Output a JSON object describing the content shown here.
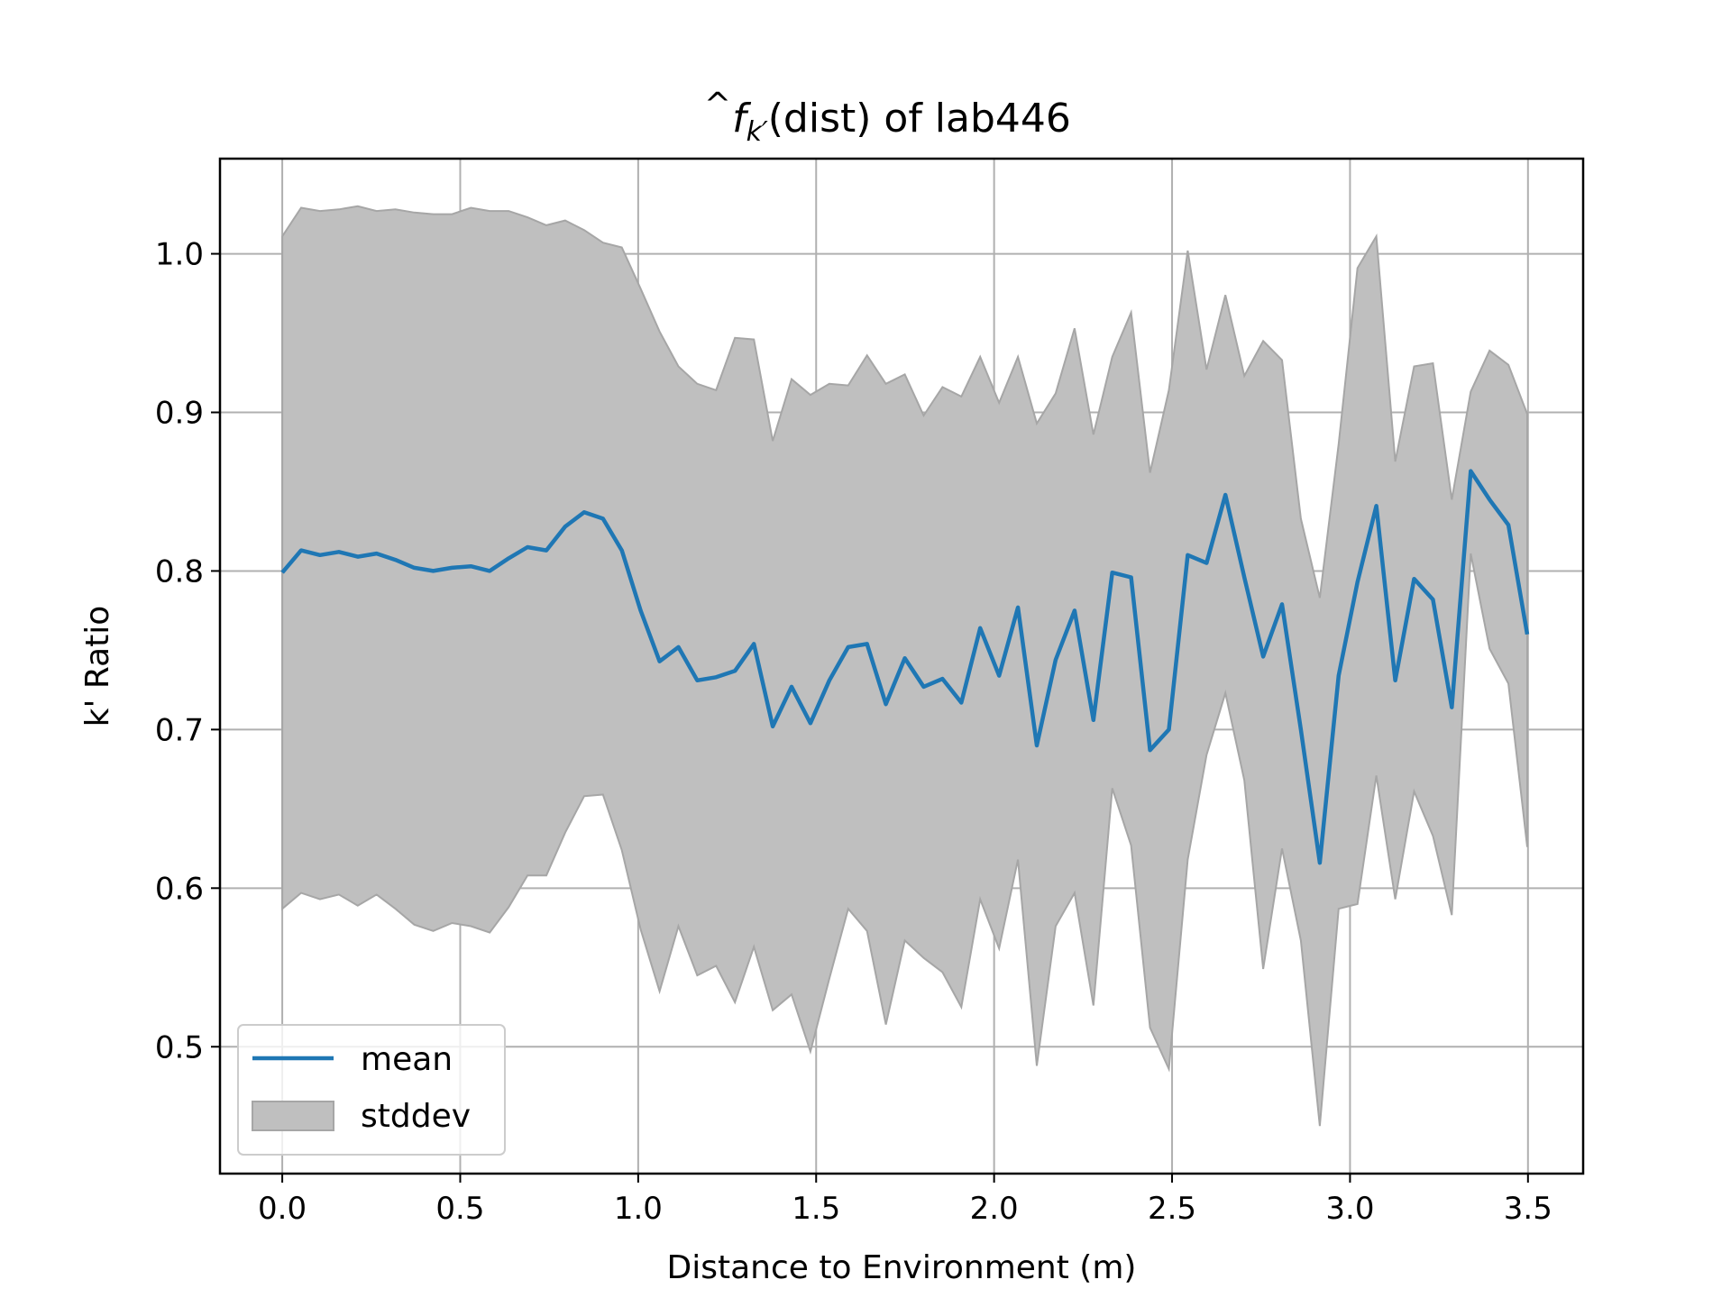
{
  "chart_data": {
    "type": "area",
    "title": "(dist) of lab446",
    "title_math": {
      "symbol": "f",
      "subscript": "k′",
      "hat": true
    },
    "xlabel": "Distance to Environment (m)",
    "ylabel": "k' Ratio",
    "xlim": [
      -0.175,
      3.655
    ],
    "ylim": [
      0.42,
      1.06
    ],
    "xticks": [
      0.0,
      0.5,
      1.0,
      1.5,
      2.0,
      2.5,
      3.0,
      3.5
    ],
    "xtick_labels": [
      "0.0",
      "0.5",
      "1.0",
      "1.5",
      "2.0",
      "2.5",
      "3.0",
      "3.5"
    ],
    "yticks": [
      0.5,
      0.6,
      0.7,
      0.8,
      0.9,
      1.0
    ],
    "ytick_labels": [
      "0.5",
      "0.6",
      "0.7",
      "0.8",
      "0.9",
      "1.0"
    ],
    "grid": true,
    "legend_position": "lower-left",
    "colors": {
      "mean": "#1f77b4",
      "band_fill": "#bfbfbf",
      "band_edge": "#a6a6a6",
      "grid": "#b0b0b0"
    },
    "x": [
      0.0,
      0.053,
      0.106,
      0.159,
      0.212,
      0.265,
      0.318,
      0.371,
      0.424,
      0.477,
      0.53,
      0.583,
      0.636,
      0.689,
      0.742,
      0.795,
      0.848,
      0.901,
      0.954,
      1.007,
      1.06,
      1.113,
      1.166,
      1.219,
      1.272,
      1.325,
      1.378,
      1.431,
      1.484,
      1.537,
      1.59,
      1.643,
      1.696,
      1.749,
      1.802,
      1.855,
      1.908,
      1.961,
      2.014,
      2.067,
      2.12,
      2.173,
      2.226,
      2.279,
      2.332,
      2.385,
      2.438,
      2.491,
      2.544,
      2.597,
      2.65,
      2.703,
      2.756,
      2.809,
      2.862,
      2.915,
      2.968,
      3.021,
      3.074,
      3.127,
      3.18,
      3.233,
      3.286,
      3.339,
      3.392,
      3.445,
      3.498
    ],
    "series": [
      {
        "name": "mean",
        "values": [
          0.799,
          0.813,
          0.81,
          0.812,
          0.809,
          0.811,
          0.807,
          0.802,
          0.8,
          0.802,
          0.803,
          0.8,
          0.808,
          0.815,
          0.813,
          0.828,
          0.837,
          0.833,
          0.813,
          0.775,
          0.743,
          0.752,
          0.731,
          0.733,
          0.737,
          0.754,
          0.702,
          0.727,
          0.704,
          0.731,
          0.752,
          0.754,
          0.716,
          0.745,
          0.727,
          0.732,
          0.717,
          0.764,
          0.734,
          0.777,
          0.69,
          0.744,
          0.775,
          0.706,
          0.799,
          0.796,
          0.687,
          0.7,
          0.81,
          0.805,
          0.848,
          0.796,
          0.746,
          0.779,
          0.7,
          0.616,
          0.734,
          0.793,
          0.841,
          0.731,
          0.795,
          0.782,
          0.714,
          0.863,
          0.845,
          0.829,
          0.76
        ]
      },
      {
        "name": "stddev",
        "lower": [
          0.587,
          0.597,
          0.593,
          0.596,
          0.589,
          0.596,
          0.587,
          0.577,
          0.573,
          0.578,
          0.576,
          0.572,
          0.588,
          0.608,
          0.608,
          0.635,
          0.658,
          0.659,
          0.624,
          0.574,
          0.535,
          0.576,
          0.545,
          0.551,
          0.528,
          0.563,
          0.523,
          0.533,
          0.497,
          0.543,
          0.587,
          0.573,
          0.514,
          0.567,
          0.556,
          0.547,
          0.525,
          0.593,
          0.562,
          0.618,
          0.488,
          0.576,
          0.597,
          0.526,
          0.663,
          0.627,
          0.512,
          0.486,
          0.618,
          0.684,
          0.723,
          0.668,
          0.549,
          0.625,
          0.567,
          0.45,
          0.587,
          0.59,
          0.671,
          0.593,
          0.661,
          0.633,
          0.583,
          0.811,
          0.751,
          0.729,
          0.626
        ],
        "upper": [
          1.011,
          1.029,
          1.027,
          1.028,
          1.03,
          1.027,
          1.028,
          1.026,
          1.025,
          1.025,
          1.029,
          1.027,
          1.027,
          1.023,
          1.018,
          1.021,
          1.015,
          1.007,
          1.004,
          0.978,
          0.951,
          0.929,
          0.918,
          0.914,
          0.947,
          0.946,
          0.882,
          0.921,
          0.911,
          0.918,
          0.917,
          0.936,
          0.918,
          0.924,
          0.898,
          0.916,
          0.91,
          0.935,
          0.906,
          0.935,
          0.893,
          0.912,
          0.953,
          0.886,
          0.935,
          0.963,
          0.862,
          0.914,
          1.002,
          0.927,
          0.974,
          0.923,
          0.945,
          0.933,
          0.833,
          0.783,
          0.88,
          0.991,
          1.011,
          0.869,
          0.929,
          0.931,
          0.845,
          0.913,
          0.939,
          0.93,
          0.899
        ]
      }
    ],
    "legend": [
      {
        "label": "mean",
        "kind": "line"
      },
      {
        "label": "stddev",
        "kind": "patch"
      }
    ]
  }
}
